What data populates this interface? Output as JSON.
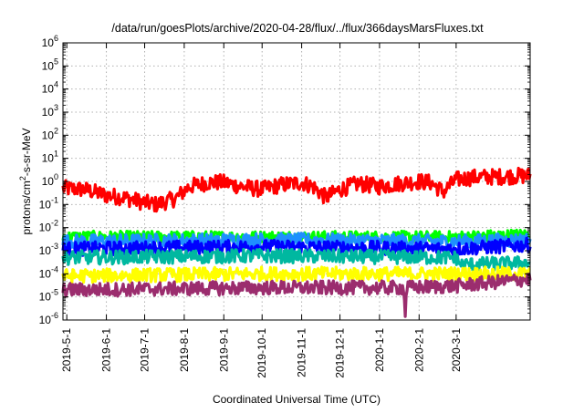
{
  "chart_data": {
    "type": "line",
    "title": "/data/run/goesPlots/archive/2020-04-28/flux/../flux/366daysMarsFluxes.txt",
    "xlabel": "Coordinated Universal Time (UTC)",
    "ylabel": {
      "prefix": "protons/cm",
      "sup": "2",
      "suffix": "-s-sr-MeV"
    },
    "x_range": [
      "2019-04-28",
      "2020-04-28"
    ],
    "x_ticks": [
      "2019-5-1",
      "2019-6-1",
      "2019-7-1",
      "2019-8-1",
      "2019-9-1",
      "2019-10-1",
      "2019-11-1",
      "2019-12-1",
      "2020-1-1",
      "2020-2-1",
      "2020-3-1"
    ],
    "y_scale": "log",
    "y_range": [
      1e-06,
      1000000.0
    ],
    "y_ticks": [
      {
        "base": "10",
        "exp": "6"
      },
      {
        "base": "10",
        "exp": "5"
      },
      {
        "base": "10",
        "exp": "4"
      },
      {
        "base": "10",
        "exp": "3"
      },
      {
        "base": "10",
        "exp": "2"
      },
      {
        "base": "10",
        "exp": "1"
      },
      {
        "base": "10",
        "exp": "0"
      },
      {
        "base": "10",
        "exp": "-1"
      },
      {
        "base": "10",
        "exp": "-2"
      },
      {
        "base": "10",
        "exp": "-3"
      },
      {
        "base": "10",
        "exp": "-4"
      },
      {
        "base": "10",
        "exp": "-5"
      },
      {
        "base": "10",
        "exp": "-6"
      }
    ],
    "grid": true,
    "series": [
      {
        "color": "#ff0000",
        "noise": 0.35,
        "values": [
          [
            "2019-04-28",
            0.5
          ],
          [
            "2019-05-15",
            0.45
          ],
          [
            "2019-06-01",
            0.25
          ],
          [
            "2019-06-15",
            0.2
          ],
          [
            "2019-07-01",
            0.12
          ],
          [
            "2019-07-10",
            0.1
          ],
          [
            "2019-07-25",
            0.18
          ],
          [
            "2019-08-05",
            0.6
          ],
          [
            "2019-08-20",
            0.9
          ],
          [
            "2019-09-01",
            0.9
          ],
          [
            "2019-09-15",
            0.6
          ],
          [
            "2019-10-01",
            0.45
          ],
          [
            "2019-10-15",
            0.7
          ],
          [
            "2019-11-01",
            0.9
          ],
          [
            "2019-11-10",
            0.6
          ],
          [
            "2019-11-20",
            0.2
          ],
          [
            "2019-12-01",
            0.45
          ],
          [
            "2019-12-15",
            0.8
          ],
          [
            "2020-01-01",
            0.6
          ],
          [
            "2020-01-15",
            0.8
          ],
          [
            "2020-02-01",
            1.0
          ],
          [
            "2020-02-10",
            0.9
          ],
          [
            "2020-02-20",
            0.35
          ],
          [
            "2020-03-01",
            1.2
          ],
          [
            "2020-03-15",
            1.5
          ],
          [
            "2020-04-01",
            1.6
          ],
          [
            "2020-04-28",
            1.8
          ]
        ]
      },
      {
        "color": "#00ff00",
        "noise": 0.25,
        "values": [
          [
            "2019-04-28",
            0.004
          ],
          [
            "2019-10-01",
            0.004
          ],
          [
            "2020-03-01",
            0.004
          ],
          [
            "2020-04-28",
            0.005
          ]
        ]
      },
      {
        "color": "#1e90ff",
        "noise": 0.3,
        "values": [
          [
            "2019-04-28",
            0.0025
          ],
          [
            "2019-10-01",
            0.003
          ],
          [
            "2020-03-01",
            0.0025
          ],
          [
            "2020-04-28",
            0.003
          ]
        ]
      },
      {
        "color": "#0000ff",
        "noise": 0.3,
        "values": [
          [
            "2019-04-28",
            0.0012
          ],
          [
            "2019-10-01",
            0.0015
          ],
          [
            "2020-03-01",
            0.0012
          ],
          [
            "2020-04-28",
            0.0018
          ]
        ]
      },
      {
        "color": "#00b8a0",
        "noise": 0.3,
        "values": [
          [
            "2019-04-28",
            0.0005
          ],
          [
            "2019-10-01",
            0.0006
          ],
          [
            "2020-03-01",
            0.0005
          ],
          [
            "2020-03-05",
            0.00025
          ],
          [
            "2020-04-28",
            0.0003
          ]
        ]
      },
      {
        "color": "#ffff00",
        "noise": 0.3,
        "values": [
          [
            "2019-04-28",
            8e-05
          ],
          [
            "2019-10-01",
            0.0001
          ],
          [
            "2020-03-01",
            0.0001
          ],
          [
            "2020-04-28",
            0.0001
          ]
        ]
      },
      {
        "color": "#9b2d6e",
        "noise": 0.3,
        "values": [
          [
            "2019-04-28",
            2e-05
          ],
          [
            "2019-10-01",
            2.5e-05
          ],
          [
            "2020-01-20",
            2.5e-05
          ],
          [
            "2020-01-21",
            1e-06
          ],
          [
            "2020-01-22",
            2.5e-05
          ],
          [
            "2020-03-01",
            3e-05
          ],
          [
            "2020-04-28",
            6e-05
          ]
        ]
      }
    ]
  }
}
